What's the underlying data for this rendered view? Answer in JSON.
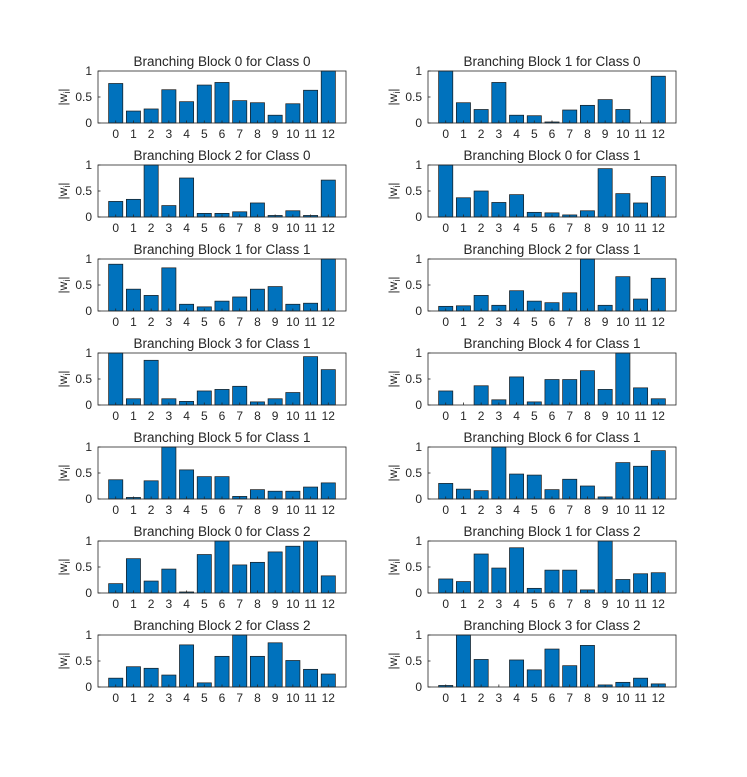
{
  "colors": {
    "bar_fill": "#0072BD",
    "bar_edge": "#1a1a1a",
    "axis": "#262626",
    "background": "#ffffff"
  },
  "chart_data": [
    {
      "type": "bar",
      "title": "Branching Block 0 for Class 0",
      "ylabel": "|w_i|",
      "categories": [
        "0",
        "1",
        "2",
        "3",
        "4",
        "5",
        "6",
        "7",
        "8",
        "9",
        "10",
        "11",
        "12"
      ],
      "values": [
        0.76,
        0.23,
        0.27,
        0.64,
        0.41,
        0.73,
        0.78,
        0.43,
        0.39,
        0.15,
        0.37,
        0.63,
        1.0
      ],
      "ylim": [
        0,
        1
      ],
      "yticks": [
        "0",
        "0.5",
        "1"
      ]
    },
    {
      "type": "bar",
      "title": "Branching Block 1 for Class 0",
      "ylabel": "|w_i|",
      "categories": [
        "0",
        "1",
        "2",
        "3",
        "4",
        "5",
        "6",
        "7",
        "8",
        "9",
        "10",
        "11",
        "12"
      ],
      "values": [
        1.0,
        0.39,
        0.26,
        0.78,
        0.15,
        0.14,
        0.02,
        0.25,
        0.34,
        0.45,
        0.26,
        0.0,
        0.9
      ],
      "ylim": [
        0,
        1
      ],
      "yticks": [
        "0",
        "0.5",
        "1"
      ]
    },
    {
      "type": "bar",
      "title": "Branching Block 2 for Class 0",
      "ylabel": "|w_i|",
      "categories": [
        "0",
        "1",
        "2",
        "3",
        "4",
        "5",
        "6",
        "7",
        "8",
        "9",
        "10",
        "11",
        "12"
      ],
      "values": [
        0.3,
        0.34,
        1.0,
        0.22,
        0.75,
        0.07,
        0.07,
        0.1,
        0.27,
        0.03,
        0.12,
        0.03,
        0.71
      ],
      "ylim": [
        0,
        1
      ],
      "yticks": [
        "0",
        "0.5",
        "1"
      ]
    },
    {
      "type": "bar",
      "title": "Branching Block 0 for Class 1",
      "ylabel": "|w_i|",
      "categories": [
        "0",
        "1",
        "2",
        "3",
        "4",
        "5",
        "6",
        "7",
        "8",
        "9",
        "10",
        "11",
        "12"
      ],
      "values": [
        1.0,
        0.37,
        0.5,
        0.28,
        0.43,
        0.09,
        0.08,
        0.04,
        0.12,
        0.93,
        0.45,
        0.27,
        0.78
      ],
      "ylim": [
        0,
        1
      ],
      "yticks": [
        "0",
        "0.5",
        "1"
      ]
    },
    {
      "type": "bar",
      "title": "Branching Block 1 for Class 1",
      "ylabel": "|w_i|",
      "categories": [
        "0",
        "1",
        "2",
        "3",
        "4",
        "5",
        "6",
        "7",
        "8",
        "9",
        "10",
        "11",
        "12"
      ],
      "values": [
        0.9,
        0.42,
        0.3,
        0.83,
        0.13,
        0.08,
        0.19,
        0.27,
        0.42,
        0.47,
        0.13,
        0.15,
        1.0
      ],
      "ylim": [
        0,
        1
      ],
      "yticks": [
        "0",
        "0.5",
        "1"
      ]
    },
    {
      "type": "bar",
      "title": "Branching Block 2 for Class 1",
      "ylabel": "|w_i|",
      "categories": [
        "0",
        "1",
        "2",
        "3",
        "4",
        "5",
        "6",
        "7",
        "8",
        "9",
        "10",
        "11",
        "12"
      ],
      "values": [
        0.09,
        0.1,
        0.3,
        0.11,
        0.39,
        0.19,
        0.16,
        0.35,
        1.0,
        0.11,
        0.66,
        0.23,
        0.63
      ],
      "ylim": [
        0,
        1
      ],
      "yticks": [
        "0",
        "0.5",
        "1"
      ]
    },
    {
      "type": "bar",
      "title": "Branching Block 3 for Class 1",
      "ylabel": "|w_i|",
      "categories": [
        "0",
        "1",
        "2",
        "3",
        "4",
        "5",
        "6",
        "7",
        "8",
        "9",
        "10",
        "11",
        "12"
      ],
      "values": [
        1.0,
        0.12,
        0.86,
        0.12,
        0.07,
        0.27,
        0.3,
        0.36,
        0.06,
        0.12,
        0.24,
        0.93,
        0.68
      ],
      "ylim": [
        0,
        1
      ],
      "yticks": [
        "0",
        "0.5",
        "1"
      ]
    },
    {
      "type": "bar",
      "title": "Branching Block 4 for Class 1",
      "ylabel": "|w_i|",
      "categories": [
        "0",
        "1",
        "2",
        "3",
        "4",
        "5",
        "6",
        "7",
        "8",
        "9",
        "10",
        "11",
        "12"
      ],
      "values": [
        0.27,
        0.0,
        0.37,
        0.1,
        0.54,
        0.06,
        0.49,
        0.49,
        0.66,
        0.3,
        1.0,
        0.33,
        0.12
      ],
      "ylim": [
        0,
        1
      ],
      "yticks": [
        "0",
        "0.5",
        "1"
      ]
    },
    {
      "type": "bar",
      "title": "Branching Block 5 for Class 1",
      "ylabel": "|w_i|",
      "categories": [
        "0",
        "1",
        "2",
        "3",
        "4",
        "5",
        "6",
        "7",
        "8",
        "9",
        "10",
        "11",
        "12"
      ],
      "values": [
        0.37,
        0.03,
        0.35,
        1.0,
        0.56,
        0.43,
        0.43,
        0.05,
        0.18,
        0.15,
        0.15,
        0.23,
        0.31
      ],
      "ylim": [
        0,
        1
      ],
      "yticks": [
        "0",
        "0.5",
        "1"
      ]
    },
    {
      "type": "bar",
      "title": "Branching Block 6 for Class 1",
      "ylabel": "|w_i|",
      "categories": [
        "0",
        "1",
        "2",
        "3",
        "4",
        "5",
        "6",
        "7",
        "8",
        "9",
        "10",
        "11",
        "12"
      ],
      "values": [
        0.3,
        0.19,
        0.16,
        1.0,
        0.48,
        0.46,
        0.18,
        0.38,
        0.25,
        0.04,
        0.7,
        0.63,
        0.93
      ],
      "ylim": [
        0,
        1
      ],
      "yticks": [
        "0",
        "0.5",
        "1"
      ]
    },
    {
      "type": "bar",
      "title": "Branching Block 0 for Class 2",
      "ylabel": "|w_i|",
      "categories": [
        "0",
        "1",
        "2",
        "3",
        "4",
        "5",
        "6",
        "7",
        "8",
        "9",
        "10",
        "11",
        "12"
      ],
      "values": [
        0.18,
        0.66,
        0.23,
        0.46,
        0.02,
        0.74,
        1.0,
        0.54,
        0.59,
        0.79,
        0.9,
        1.0,
        0.33
      ],
      "ylim": [
        0,
        1
      ],
      "yticks": [
        "0",
        "0.5",
        "1"
      ]
    },
    {
      "type": "bar",
      "title": "Branching Block 1 for Class 2",
      "ylabel": "|w_i|",
      "categories": [
        "0",
        "1",
        "2",
        "3",
        "4",
        "5",
        "6",
        "7",
        "8",
        "9",
        "10",
        "11",
        "12"
      ],
      "values": [
        0.27,
        0.22,
        0.75,
        0.48,
        0.87,
        0.09,
        0.44,
        0.44,
        0.06,
        1.0,
        0.26,
        0.37,
        0.39
      ],
      "ylim": [
        0,
        1
      ],
      "yticks": [
        "0",
        "0.5",
        "1"
      ]
    },
    {
      "type": "bar",
      "title": "Branching Block 2 for Class 2",
      "ylabel": "|w_i|",
      "categories": [
        "0",
        "1",
        "2",
        "3",
        "4",
        "5",
        "6",
        "7",
        "8",
        "9",
        "10",
        "11",
        "12"
      ],
      "values": [
        0.17,
        0.39,
        0.36,
        0.23,
        0.81,
        0.08,
        0.59,
        1.0,
        0.59,
        0.85,
        0.51,
        0.34,
        0.25
      ],
      "ylim": [
        0,
        1
      ],
      "yticks": [
        "0",
        "0.5",
        "1"
      ]
    },
    {
      "type": "bar",
      "title": "Branching Block 3 for Class 2",
      "ylabel": "|w_i|",
      "categories": [
        "0",
        "1",
        "2",
        "3",
        "4",
        "5",
        "6",
        "7",
        "8",
        "9",
        "10",
        "11",
        "12"
      ],
      "values": [
        0.03,
        1.0,
        0.53,
        0.0,
        0.52,
        0.33,
        0.73,
        0.41,
        0.8,
        0.04,
        0.09,
        0.17,
        0.06
      ],
      "ylim": [
        0,
        1
      ],
      "yticks": [
        "0",
        "0.5",
        "1"
      ]
    }
  ]
}
